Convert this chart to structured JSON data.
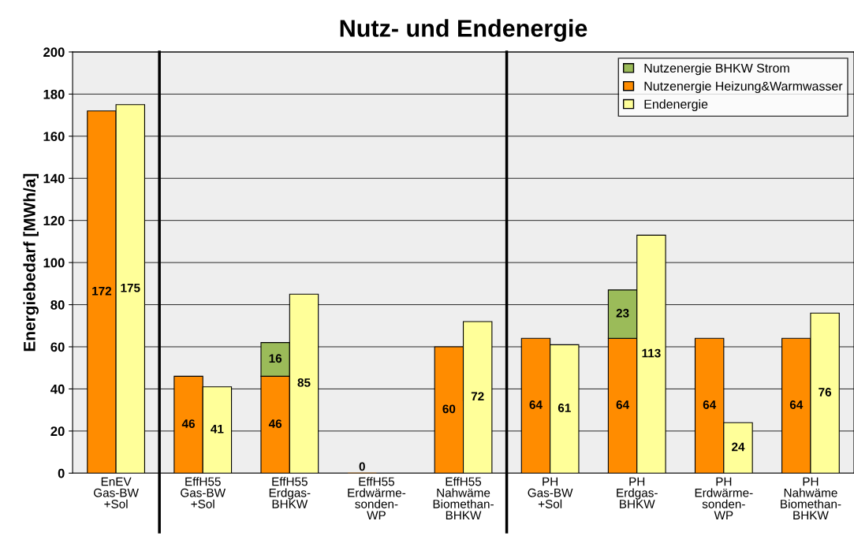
{
  "chart_data": {
    "type": "bar",
    "title": "Nutz- und Endenergie",
    "ylabel": "Energiebedarf [MWh/a]",
    "categories": [
      "EnEV\nGas-BW\n+Sol",
      "EffH55\nGas-BW\n+Sol",
      "EffH55\nErdgas-\nBHKW",
      "EffH55\nErdwärme-\nsonden-\nWP",
      "EffH55\nNahwäme\nBiomethan-\nBHKW",
      "PH\nGas-BW\n+Sol",
      "PH\nErdgas-\nBHKW",
      "PH\nErdwärme-\nsonden-\nWP",
      "PH\nNahwäme\nBiomethan-\nBHKW"
    ],
    "series": [
      {
        "name": "Nutzenergie Heizung&Warmwasser",
        "color": "#ff8c00",
        "values": [
          172,
          46,
          46,
          0,
          60,
          64,
          64,
          64,
          64
        ],
        "value_labels": [
          "172",
          "46",
          "46",
          "0",
          "60",
          "64",
          "64",
          "64",
          "64"
        ]
      },
      {
        "name": "Nutzenergie BHKW Strom",
        "color": "#9bbb59",
        "values": [
          null,
          null,
          16,
          null,
          null,
          null,
          23,
          null,
          null
        ],
        "base": [
          null,
          null,
          46,
          null,
          null,
          null,
          64,
          null,
          null
        ],
        "value_labels": [
          null,
          null,
          "16",
          null,
          null,
          null,
          "23",
          null,
          null
        ]
      },
      {
        "name": "Endenergie",
        "color": "#ffff99",
        "values": [
          175,
          41,
          85,
          null,
          72,
          61,
          113,
          24,
          76
        ],
        "value_labels": [
          "175",
          "41",
          "85",
          null,
          "72",
          "61",
          "113",
          "24",
          "76"
        ]
      }
    ],
    "ylim": [
      0,
      200
    ],
    "yticks": [
      0,
      20,
      40,
      60,
      80,
      100,
      120,
      140,
      160,
      180,
      200
    ],
    "grid": "y",
    "legend": "top right"
  }
}
